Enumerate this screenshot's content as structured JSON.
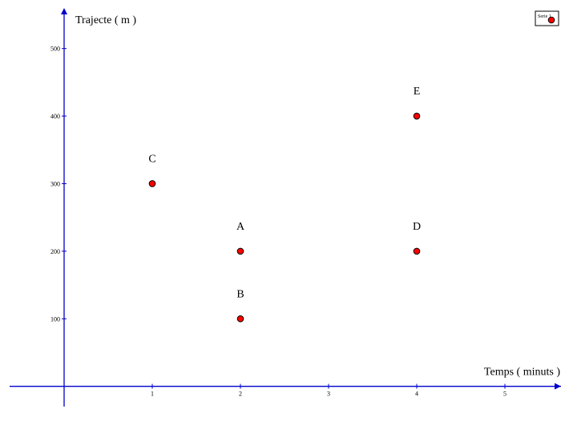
{
  "chart_data": {
    "type": "scatter",
    "xlabel": "Temps ( minuts )",
    "ylabel": "Trajecte ( m )",
    "x_ticks": [
      "1",
      "2",
      "3",
      "4",
      "5"
    ],
    "y_ticks": [
      "100",
      "200",
      "300",
      "400",
      "500"
    ],
    "xlim": [
      -0.6,
      5.6
    ],
    "ylim": [
      -30,
      560
    ],
    "grid": false,
    "legend_position": "top-right",
    "series": [
      {
        "name": "Serie 1",
        "color": "#ff0000",
        "points": [
          {
            "label": "A",
            "x": 2,
            "y": 200
          },
          {
            "label": "B",
            "x": 2,
            "y": 100
          },
          {
            "label": "C",
            "x": 1,
            "y": 300
          },
          {
            "label": "D",
            "x": 4,
            "y": 200
          },
          {
            "label": "E",
            "x": 4,
            "y": 400
          }
        ]
      }
    ],
    "axis_color": "#0000cc"
  }
}
